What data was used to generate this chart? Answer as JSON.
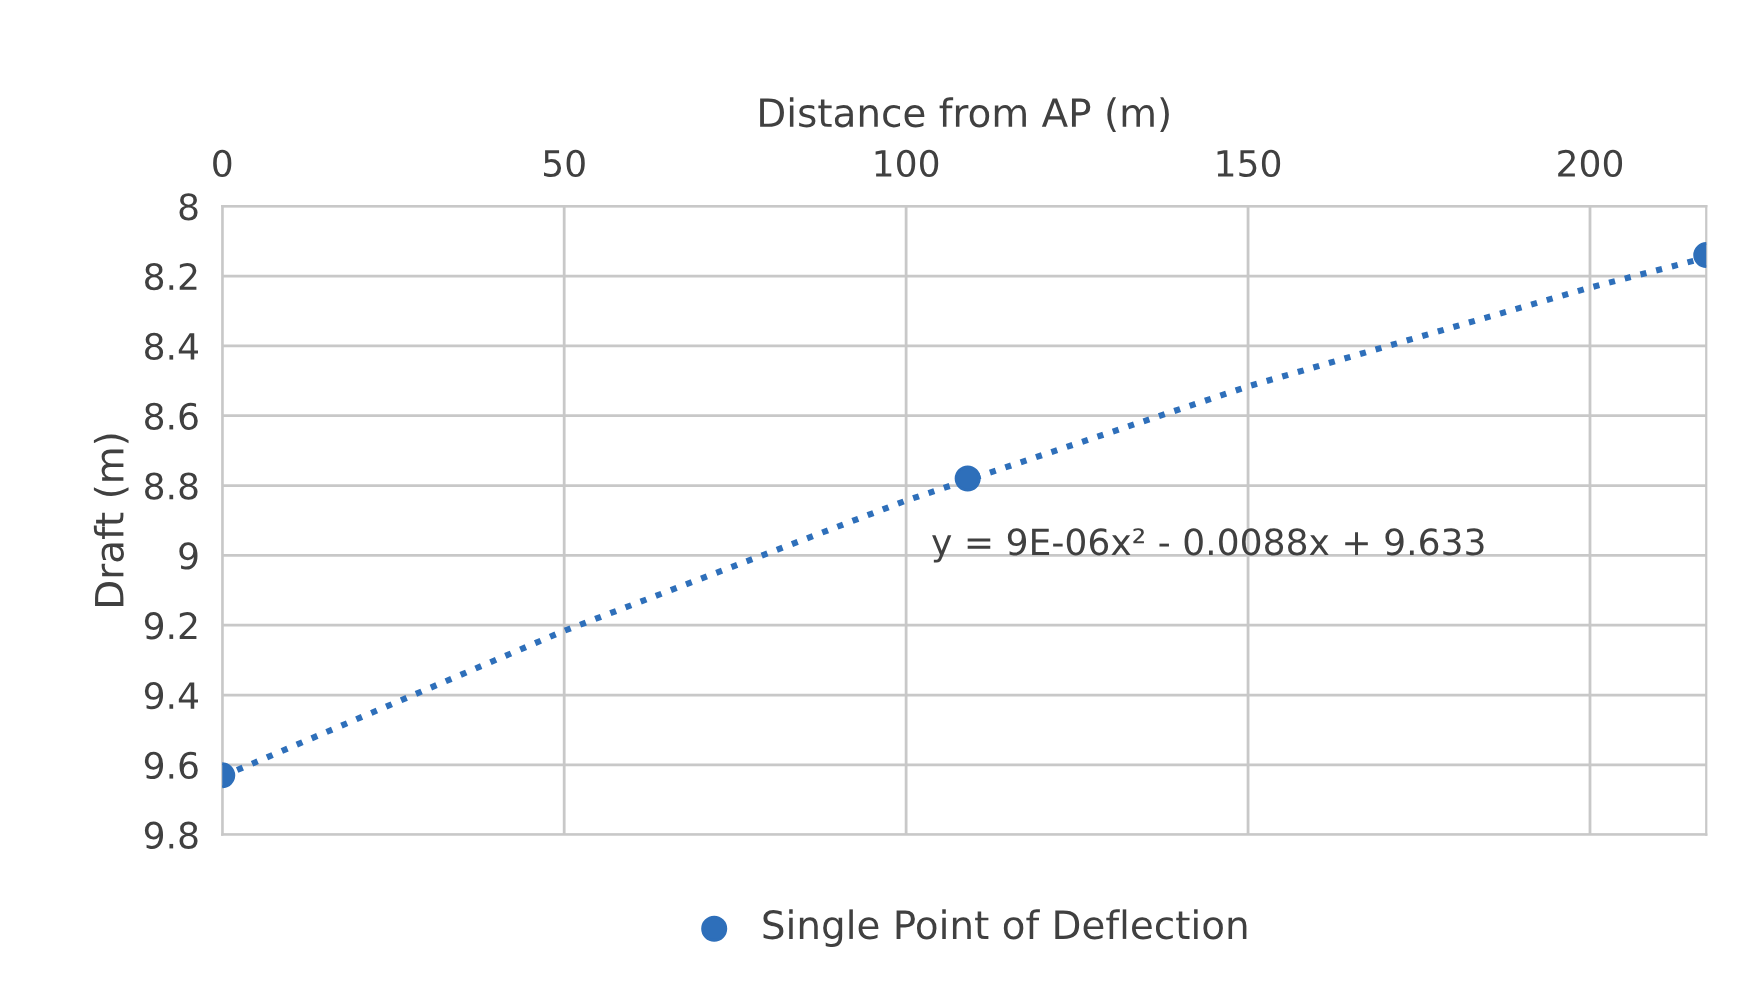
{
  "chart_data": {
    "type": "scatter",
    "xlabel": "Distance from AP (m)",
    "ylabel": "Draft (m)",
    "xlim": [
      0,
      217
    ],
    "xticks": [
      0,
      50,
      100,
      150,
      200
    ],
    "ylim": [
      9.8,
      8
    ],
    "yticks": [
      8,
      8.2,
      8.4,
      8.6,
      8.8,
      9,
      9.2,
      9.4,
      9.6,
      9.8
    ],
    "grid": true,
    "legend": "bottom",
    "marker": "circle",
    "series": [
      {
        "name": "Single Point of Deflection",
        "color": "#2e6fba",
        "x": [
          0,
          109,
          217
        ],
        "values": [
          9.63,
          8.78,
          8.14
        ]
      },
      {
        "type": "line",
        "color": "#2e6fba",
        "marker": "none",
        "line_style": "dotted",
        "x": [
          0,
          50,
          100,
          150,
          200,
          217
        ],
        "values": [
          9.633,
          9.216,
          8.843,
          8.516,
          8.233,
          8.147
        ]
      }
    ],
    "annotations": [
      "y = 9E-06x² - 0.0088x + 9.633"
    ]
  }
}
